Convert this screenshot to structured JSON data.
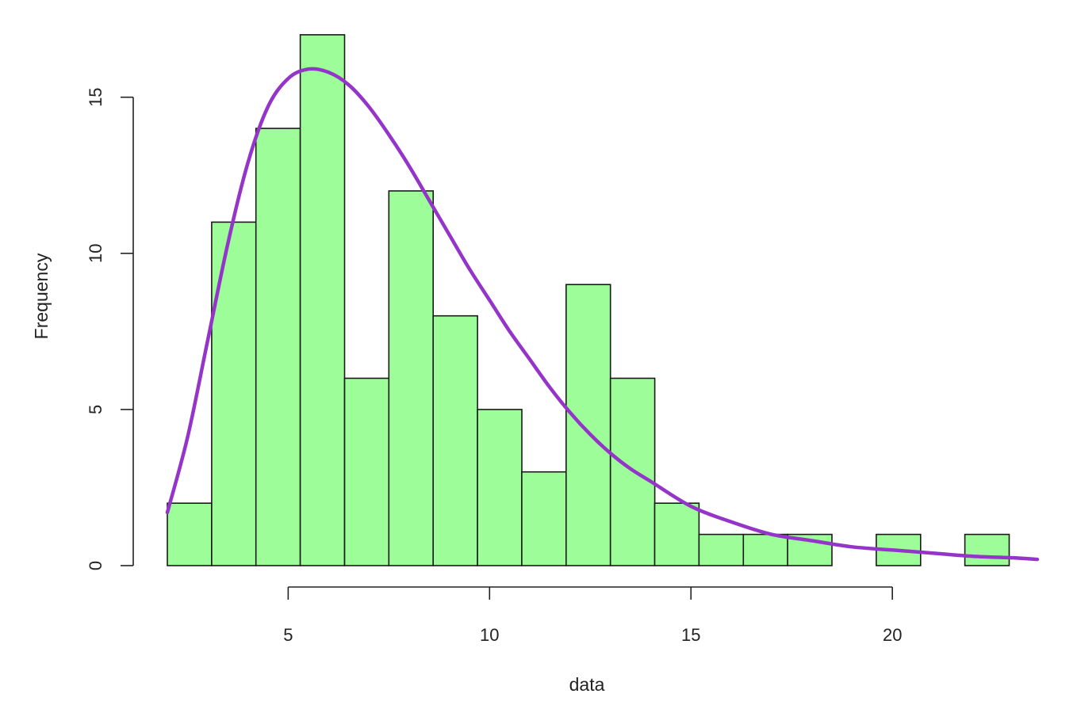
{
  "chart_data": {
    "type": "bar",
    "title": "",
    "xlabel": "data",
    "ylabel": "Frequency",
    "bin_edges": [
      2.0,
      3.1,
      4.2,
      5.3,
      6.4,
      7.5,
      8.6,
      9.7,
      10.8,
      11.9,
      13.0,
      14.1,
      15.2,
      16.3,
      17.4,
      18.5,
      19.6,
      20.7,
      21.8,
      22.9
    ],
    "values": [
      2,
      11,
      14,
      17,
      6,
      12,
      8,
      5,
      3,
      9,
      6,
      2,
      1,
      1,
      1,
      0,
      1,
      0,
      1
    ],
    "xlim": [
      2.0,
      23.6
    ],
    "ylim": [
      0,
      17.2
    ],
    "x_ticks": [
      "5",
      "10",
      "15",
      "20"
    ],
    "y_ticks": [
      "0",
      "5",
      "10",
      "15"
    ],
    "density_curve": {
      "x": [
        2.0,
        2.5,
        3.0,
        3.5,
        4.0,
        4.5,
        5.0,
        5.5,
        6.0,
        6.5,
        7.0,
        7.5,
        8.0,
        8.5,
        9.0,
        9.5,
        10.0,
        10.5,
        11.0,
        11.5,
        12.0,
        12.5,
        13.0,
        13.5,
        14.0,
        15.0,
        16.0,
        17.0,
        18.0,
        19.0,
        20.0,
        21.0,
        22.0,
        23.0,
        23.6
      ],
      "y": [
        1.7,
        4.1,
        7.2,
        10.3,
        12.9,
        14.7,
        15.6,
        15.9,
        15.8,
        15.4,
        14.7,
        13.8,
        12.8,
        11.7,
        10.6,
        9.5,
        8.5,
        7.5,
        6.6,
        5.7,
        4.9,
        4.2,
        3.6,
        3.1,
        2.7,
        1.9,
        1.4,
        1.0,
        0.8,
        0.6,
        0.5,
        0.4,
        0.3,
        0.25,
        0.2
      ]
    },
    "colors": {
      "bar_fill": "#9cfd99",
      "bar_stroke": "#1a1a1a",
      "curve": "#9534c9"
    }
  }
}
